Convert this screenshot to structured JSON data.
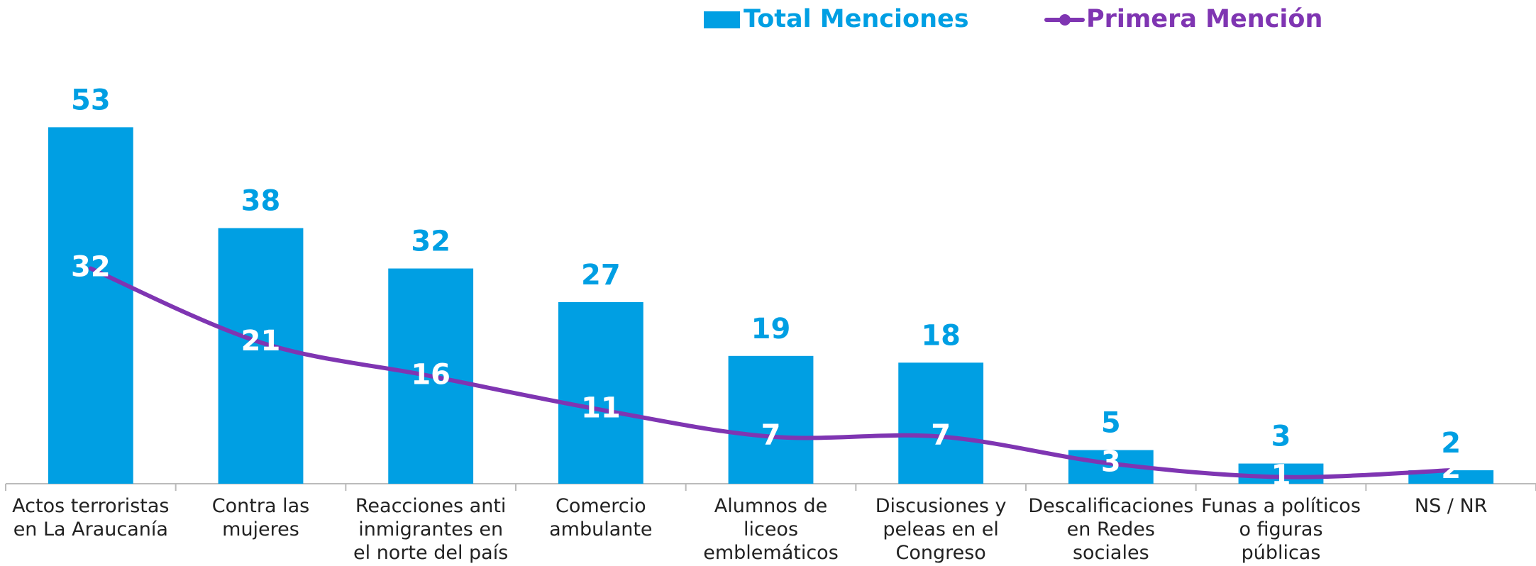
{
  "chart_data": {
    "type": "bar",
    "categories": [
      "Actos terroristas en La Araucanía",
      "Contra las mujeres",
      "Reacciones anti inmigrantes en el norte del país",
      "Comercio ambulante",
      "Alumnos de liceos emblemáticos",
      "Discusiones y peleas en el Congreso",
      "Descalificaciones en Redes sociales",
      "Funas a políticos o figuras públicas",
      "NS / NR"
    ],
    "series": [
      {
        "name": "Total Menciones",
        "type": "bar",
        "color": "#009fe3",
        "values": [
          53,
          38,
          32,
          27,
          19,
          18,
          5,
          3,
          2
        ]
      },
      {
        "name": "Primera Mención",
        "type": "line",
        "color": "#7f35b2",
        "values": [
          32,
          21,
          16,
          11,
          7,
          7,
          3,
          1,
          2
        ]
      }
    ],
    "ylim": [
      0,
      60
    ],
    "legend": "top"
  }
}
